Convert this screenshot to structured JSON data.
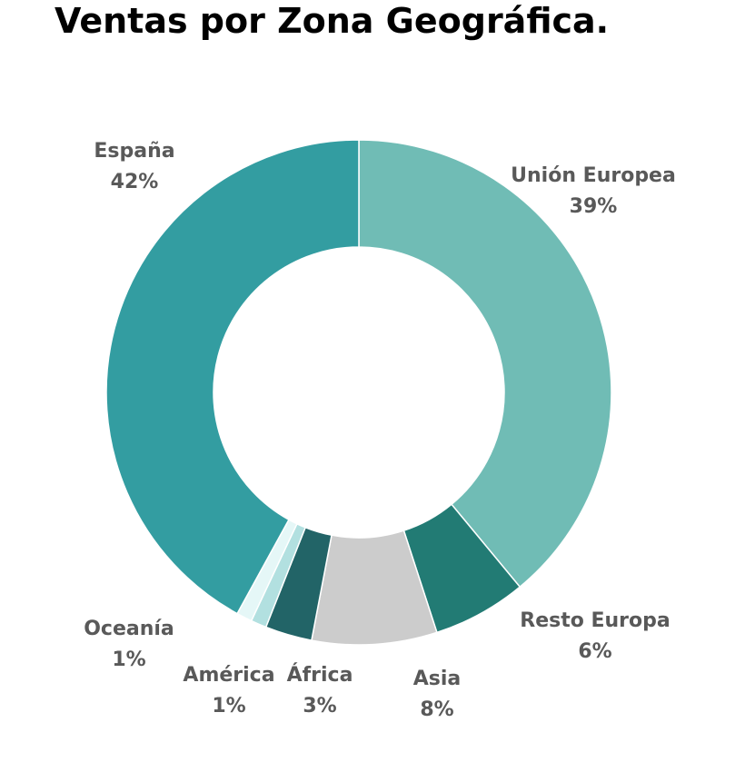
{
  "chart_data": {
    "type": "pie",
    "title": "Ventas por Zona Geográfica.",
    "subtype": "donut",
    "start_angle_deg": 0,
    "direction": "clockwise",
    "slices": [
      {
        "label": "Unión Europea",
        "value": 39,
        "display": "39%",
        "color": "#70bcb5"
      },
      {
        "label": "Resto Europa",
        "value": 6,
        "display": "6%",
        "color": "#227b74"
      },
      {
        "label": "Asia",
        "value": 8,
        "display": "8%",
        "color": "#cccccc"
      },
      {
        "label": "África",
        "value": 3,
        "display": "3%",
        "color": "#226467"
      },
      {
        "label": "América",
        "value": 1,
        "display": "1%",
        "color": "#b2e0e0"
      },
      {
        "label": "Oceanía",
        "value": 1,
        "display": "1%",
        "color": "#e5f7f7"
      },
      {
        "label": "España",
        "value": 42,
        "display": "42%",
        "color": "#339da1"
      }
    ],
    "legend": "none",
    "data_labels": "outside"
  }
}
